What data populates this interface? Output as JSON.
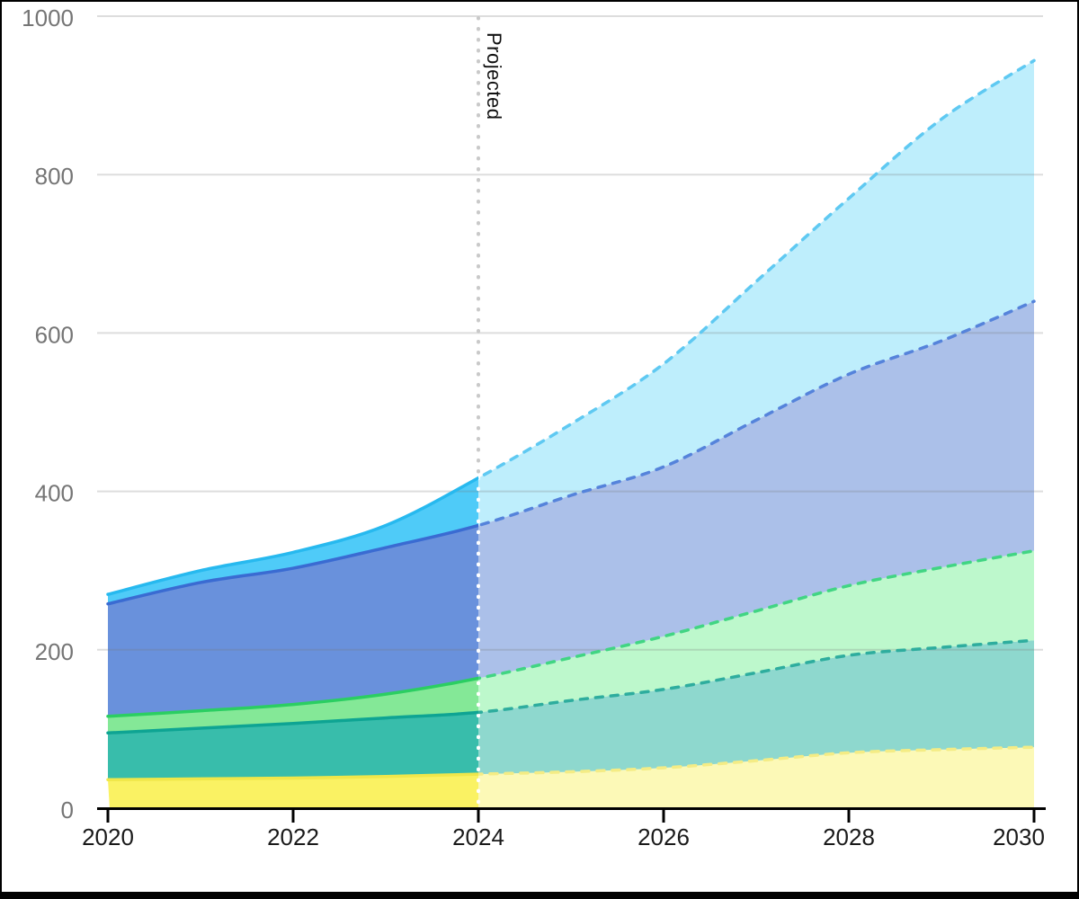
{
  "frame": {
    "background": "#000000",
    "chart_background": "#ffffff"
  },
  "chart_data": {
    "type": "area",
    "stacked": true,
    "title": "",
    "xlabel": "",
    "ylabel": "",
    "x": [
      2020,
      2021,
      2022,
      2023,
      2024,
      2025,
      2026,
      2027,
      2028,
      2029,
      2030
    ],
    "xlim": [
      2020,
      2030
    ],
    "ylim": [
      0,
      1000
    ],
    "x_ticks": [
      2020,
      2022,
      2024,
      2026,
      2028,
      2030
    ],
    "y_ticks": [
      0,
      200,
      400,
      600,
      800,
      1000
    ],
    "grid": true,
    "legend_position": "none",
    "projected_from_year": 2024,
    "annotation": {
      "label": "Projected",
      "x_year": 2024,
      "rotation_deg": 90
    },
    "series": [
      {
        "name": "yellow",
        "values": [
          36,
          37,
          38,
          40,
          43,
          46,
          51,
          60,
          70,
          74,
          77
        ],
        "fill": "#FAF263",
        "fill_projected": "#FCF9B7",
        "stroke": "#F0E74A",
        "stroke_projected": "#F4EC85"
      },
      {
        "name": "teal",
        "values": [
          59,
          64,
          69,
          74,
          78,
          90,
          99,
          111,
          123,
          129,
          135
        ],
        "fill": "#38BDAB",
        "fill_projected": "#8ED8CE",
        "stroke": "#0EA493",
        "stroke_projected": "#2EAD9E"
      },
      {
        "name": "green",
        "values": [
          21,
          22,
          24,
          30,
          43,
          54,
          67,
          78,
          88,
          101,
          113
        ],
        "fill": "#84E897",
        "fill_projected": "#BDF8CC",
        "stroke": "#2BCE62",
        "stroke_projected": "#41D583"
      },
      {
        "name": "blue",
        "values": [
          142,
          162,
          172,
          185,
          193,
          205,
          214,
          241,
          267,
          286,
          315
        ],
        "fill": "#6991DC",
        "fill_projected": "#ABC0E9",
        "stroke": "#3A6BD2",
        "stroke_projected": "#5583DB"
      },
      {
        "name": "cyan",
        "values": [
          12,
          15,
          20,
          28,
          60,
          90,
          130,
          175,
          222,
          280,
          304
        ],
        "fill": "#4FCBF8",
        "fill_projected": "#BEEEFC",
        "stroke": "#27B9EF",
        "stroke_projected": "#5FC9F2"
      }
    ],
    "cumulative_totals": [
      270,
      300,
      323,
      357,
      417,
      485,
      561,
      665,
      770,
      870,
      944
    ]
  },
  "axes": {
    "x_tick_label_color": "#1a1a1a",
    "y_tick_label_color": "#757575",
    "axis_line_color": "#000000",
    "grid_color": "#E0E0E0",
    "divider_color_above_stack": "#C9C9C9",
    "divider_color_on_stack": "#FFFFFF"
  }
}
